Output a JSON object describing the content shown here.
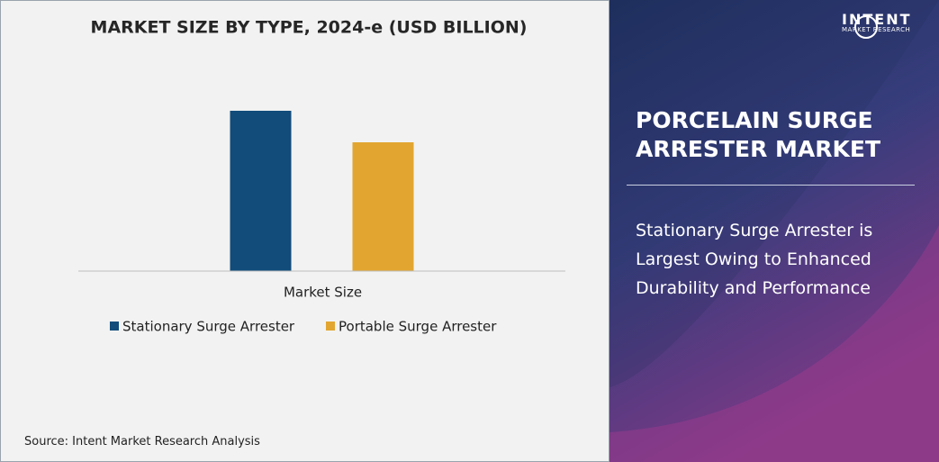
{
  "chart_data": {
    "type": "bar",
    "title": "MARKET SIZE BY TYPE, 2024-e (USD BILLION)",
    "categories": [
      "Market Size"
    ],
    "series": [
      {
        "name": "Stationary Surge Arrester",
        "color": "#114c7a",
        "values": [
          1.78
        ]
      },
      {
        "name": "Portable Surge Arrester",
        "color": "#e2a630",
        "values": [
          1.43
        ]
      }
    ],
    "ylim": [
      0,
      2.0
    ]
  },
  "source": "Source: Intent Market Research Analysis",
  "brand": {
    "name": "INTENT",
    "tagline": "MARKET RESEARCH"
  },
  "panel": {
    "headline": "PORCELAIN SURGE ARRESTER MARKET",
    "finding": "Stationary Surge Arrester is Largest Owing to Enhanced Durability and Performance"
  }
}
